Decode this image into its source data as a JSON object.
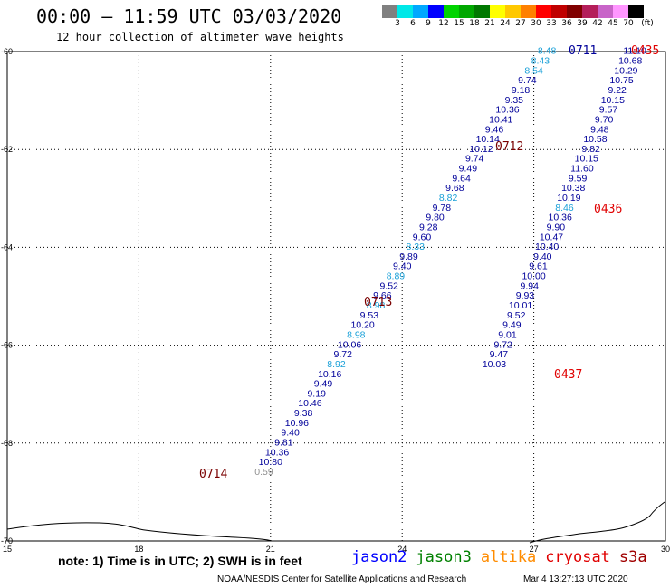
{
  "title": "00:00 – 11:59 UTC 03/03/2020",
  "subtitle": "12 hour collection of altimeter wave heights",
  "colorbar": {
    "colors": [
      "#808080",
      "#00e8e8",
      "#00a8ff",
      "#0000ff",
      "#00d400",
      "#00a800",
      "#007800",
      "#ffff00",
      "#ffc800",
      "#ff8000",
      "#ff0000",
      "#c00000",
      "#800000",
      "#b41e5a",
      "#c864c8",
      "#ff96ff",
      "#000000"
    ],
    "labels": [
      "3",
      "6",
      "9",
      "12",
      "15",
      "18",
      "21",
      "24",
      "27",
      "30",
      "33",
      "36",
      "39",
      "42",
      "45",
      "70",
      "(ft)"
    ]
  },
  "colors": {
    "dark": "#00009a",
    "light": "#19a0d8",
    "pass_dark": "#7a0000",
    "pass_red": "#e00000",
    "gray": "#909090"
  },
  "chart_data": {
    "type": "scatter",
    "title": "00:00 – 11:59 UTC 03/03/2020",
    "xlim": [
      15,
      30
    ],
    "ylim": [
      -70,
      -60
    ],
    "x_ticks": [
      "15",
      "18",
      "21",
      "24",
      "27",
      "30"
    ],
    "y_ticks": [
      "-60",
      "-62",
      "-64",
      "-66",
      "-68",
      "-70"
    ],
    "tracks": [
      {
        "pass": "0711",
        "pass_color": "dark",
        "points": [
          {
            "lon": 27.3,
            "lat": -60.05,
            "v": "8.48",
            "c": "light"
          },
          {
            "lon": 27.15,
            "lat": -60.25,
            "v": "8.43",
            "c": "light"
          },
          {
            "lon": 27.0,
            "lat": -60.45,
            "v": "8.54",
            "c": "light"
          },
          {
            "lon": 26.85,
            "lat": -60.65,
            "v": "9.74",
            "c": "dark"
          },
          {
            "lon": 26.7,
            "lat": -60.85,
            "v": "9.18",
            "c": "dark"
          },
          {
            "lon": 26.55,
            "lat": -61.05,
            "v": "9.35",
            "c": "dark"
          },
          {
            "lon": 26.4,
            "lat": -61.25,
            "v": "10.36",
            "c": "dark"
          },
          {
            "lon": 26.25,
            "lat": -61.45,
            "v": "10.41",
            "c": "dark"
          },
          {
            "lon": 26.1,
            "lat": -61.65,
            "v": "9.46",
            "c": "dark"
          },
          {
            "lon": 25.95,
            "lat": -61.85,
            "v": "10.14",
            "c": "dark"
          },
          {
            "lon": 25.8,
            "lat": -62.05,
            "v": "10.12",
            "c": "dark"
          },
          {
            "lon": 25.65,
            "lat": -62.25,
            "v": "9.74",
            "c": "dark"
          },
          {
            "lon": 25.5,
            "lat": -62.45,
            "v": "9.49",
            "c": "dark"
          },
          {
            "lon": 25.35,
            "lat": -62.65,
            "v": "9.64",
            "c": "dark"
          },
          {
            "lon": 25.2,
            "lat": -62.85,
            "v": "9.68",
            "c": "dark"
          },
          {
            "lon": 25.05,
            "lat": -63.05,
            "v": "8.82",
            "c": "light"
          },
          {
            "lon": 24.9,
            "lat": -63.25,
            "v": "9.78",
            "c": "dark"
          },
          {
            "lon": 24.75,
            "lat": -63.45,
            "v": "9.80",
            "c": "dark"
          },
          {
            "lon": 24.6,
            "lat": -63.65,
            "v": "9.28",
            "c": "dark"
          }
        ]
      },
      {
        "pass": "0712",
        "pass_color": "pass_dark",
        "points": [
          {
            "lon": 24.45,
            "lat": -63.85,
            "v": "9.60",
            "c": "dark"
          },
          {
            "lon": 24.3,
            "lat": -64.05,
            "v": "8.33",
            "c": "light"
          },
          {
            "lon": 24.15,
            "lat": -64.25,
            "v": "9.89",
            "c": "dark"
          },
          {
            "lon": 24.0,
            "lat": -64.45,
            "v": "9.40",
            "c": "dark"
          },
          {
            "lon": 23.85,
            "lat": -64.65,
            "v": "8.89",
            "c": "light"
          },
          {
            "lon": 23.7,
            "lat": -64.85,
            "v": "9.52",
            "c": "dark"
          },
          {
            "lon": 23.55,
            "lat": -65.05,
            "v": "9.66",
            "c": "dark"
          },
          {
            "lon": 23.4,
            "lat": -65.25,
            "v": "8.98",
            "c": "light"
          },
          {
            "lon": 23.25,
            "lat": -65.45,
            "v": "9.53",
            "c": "dark"
          },
          {
            "lon": 23.1,
            "lat": -65.65,
            "v": "10.20",
            "c": "dark"
          },
          {
            "lon": 22.95,
            "lat": -65.85,
            "v": "8.98",
            "c": "light"
          },
          {
            "lon": 22.8,
            "lat": -66.05,
            "v": "10.06",
            "c": "dark"
          },
          {
            "lon": 22.65,
            "lat": -66.25,
            "v": "9.72",
            "c": "dark"
          },
          {
            "lon": 22.5,
            "lat": -66.45,
            "v": "8.92",
            "c": "light"
          },
          {
            "lon": 22.35,
            "lat": -66.65,
            "v": "10.16",
            "c": "dark"
          },
          {
            "lon": 22.2,
            "lat": -66.85,
            "v": "9.49",
            "c": "dark"
          },
          {
            "lon": 22.05,
            "lat": -67.05,
            "v": "9.19",
            "c": "dark"
          }
        ]
      },
      {
        "pass": "0713",
        "pass_color": "pass_dark",
        "points": [
          {
            "lon": 21.9,
            "lat": -67.25,
            "v": "10.46",
            "c": "dark"
          },
          {
            "lon": 21.75,
            "lat": -67.45,
            "v": "9.38",
            "c": "dark"
          },
          {
            "lon": 21.6,
            "lat": -67.65,
            "v": "10.96",
            "c": "dark"
          },
          {
            "lon": 21.45,
            "lat": -67.85,
            "v": "9.40",
            "c": "dark"
          },
          {
            "lon": 21.3,
            "lat": -68.05,
            "v": "9.81",
            "c": "dark"
          },
          {
            "lon": 21.15,
            "lat": -68.25,
            "v": "10.36",
            "c": "dark"
          },
          {
            "lon": 21.0,
            "lat": -68.45,
            "v": "10.80",
            "c": "dark"
          }
        ]
      },
      {
        "pass": "0714",
        "pass_color": "pass_dark",
        "points": [
          {
            "lon": 20.85,
            "lat": -68.65,
            "v": "0.59",
            "c": "gray"
          }
        ]
      },
      {
        "pass": "0435",
        "pass_color": "pass_red",
        "points": [
          {
            "lon": 29.3,
            "lat": -60.05,
            "v": "11.10",
            "c": "dark"
          },
          {
            "lon": 29.2,
            "lat": -60.25,
            "v": "10.68",
            "c": "dark"
          },
          {
            "lon": 29.1,
            "lat": -60.45,
            "v": "10.29",
            "c": "dark"
          },
          {
            "lon": 29.0,
            "lat": -60.65,
            "v": "10.75",
            "c": "dark"
          },
          {
            "lon": 28.9,
            "lat": -60.85,
            "v": "9.22",
            "c": "dark"
          },
          {
            "lon": 28.8,
            "lat": -61.05,
            "v": "10.15",
            "c": "dark"
          },
          {
            "lon": 28.7,
            "lat": -61.25,
            "v": "9.57",
            "c": "dark"
          },
          {
            "lon": 28.6,
            "lat": -61.45,
            "v": "9.70",
            "c": "dark"
          },
          {
            "lon": 28.5,
            "lat": -61.65,
            "v": "9.48",
            "c": "dark"
          },
          {
            "lon": 28.4,
            "lat": -61.85,
            "v": "10.58",
            "c": "dark"
          },
          {
            "lon": 28.3,
            "lat": -62.05,
            "v": "9.82",
            "c": "dark"
          },
          {
            "lon": 28.2,
            "lat": -62.25,
            "v": "10.15",
            "c": "dark"
          },
          {
            "lon": 28.1,
            "lat": -62.45,
            "v": "11.60",
            "c": "dark"
          },
          {
            "lon": 28.0,
            "lat": -62.65,
            "v": "9.59",
            "c": "dark"
          },
          {
            "lon": 27.9,
            "lat": -62.85,
            "v": "10.38",
            "c": "dark"
          },
          {
            "lon": 27.8,
            "lat": -63.05,
            "v": "10.19",
            "c": "dark"
          },
          {
            "lon": 27.7,
            "lat": -63.25,
            "v": "8.46",
            "c": "light"
          },
          {
            "lon": 27.6,
            "lat": -63.45,
            "v": "10.36",
            "c": "dark"
          },
          {
            "lon": 27.5,
            "lat": -63.65,
            "v": "9.90",
            "c": "dark"
          }
        ]
      },
      {
        "pass": "0436",
        "pass_color": "pass_red",
        "points": [
          {
            "lon": 27.4,
            "lat": -63.85,
            "v": "10.47",
            "c": "dark"
          },
          {
            "lon": 27.3,
            "lat": -64.05,
            "v": "10.40",
            "c": "dark"
          },
          {
            "lon": 27.2,
            "lat": -64.25,
            "v": "9.40",
            "c": "dark"
          },
          {
            "lon": 27.1,
            "lat": -64.45,
            "v": "9.61",
            "c": "dark"
          },
          {
            "lon": 27.0,
            "lat": -64.65,
            "v": "10.00",
            "c": "dark"
          },
          {
            "lon": 26.9,
            "lat": -64.85,
            "v": "9.94",
            "c": "dark"
          },
          {
            "lon": 26.8,
            "lat": -65.05,
            "v": "9.93",
            "c": "dark"
          },
          {
            "lon": 26.7,
            "lat": -65.25,
            "v": "10.01",
            "c": "dark"
          },
          {
            "lon": 26.6,
            "lat": -65.45,
            "v": "9.52",
            "c": "dark"
          },
          {
            "lon": 26.5,
            "lat": -65.65,
            "v": "9.49",
            "c": "dark"
          },
          {
            "lon": 26.4,
            "lat": -65.85,
            "v": "9.01",
            "c": "dark"
          },
          {
            "lon": 26.3,
            "lat": -66.05,
            "v": "9.72",
            "c": "dark"
          },
          {
            "lon": 26.2,
            "lat": -66.25,
            "v": "9.47",
            "c": "dark"
          },
          {
            "lon": 26.1,
            "lat": -66.45,
            "v": "10.03",
            "c": "dark"
          }
        ]
      },
      {
        "pass": "0437",
        "pass_color": "pass_red",
        "points": []
      }
    ]
  },
  "note": "note: 1) Time is in UTC; 2) SWH is in feet",
  "legend": [
    {
      "label": "jason2",
      "color": "#0000ff"
    },
    {
      "label": "jason3",
      "color": "#008000"
    },
    {
      "label": "altika",
      "color": "#ff8c00"
    },
    {
      "label": "cryosat",
      "color": "#e00000"
    },
    {
      "label": "s3a",
      "color": "#a00000"
    }
  ],
  "credit": "NOAA/NESDIS Center for Satellite Applications and Research",
  "timestamp": "Mar  4 13:27:13 UTC 2020"
}
